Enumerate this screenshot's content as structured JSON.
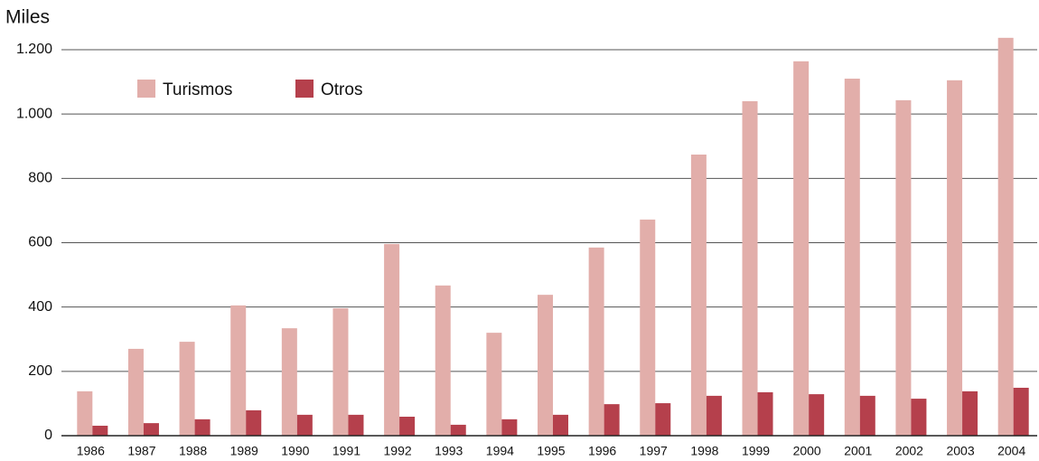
{
  "chart_data": {
    "type": "bar",
    "y_label": "Miles",
    "categories": [
      "1986",
      "1987",
      "1988",
      "1989",
      "1990",
      "1991",
      "1992",
      "1993",
      "1994",
      "1995",
      "1996",
      "1997",
      "1998",
      "1999",
      "2000",
      "2001",
      "2002",
      "2003",
      "2004"
    ],
    "series": [
      {
        "name": "Turismos",
        "color": "#e2aeaa",
        "values": [
          138,
          270,
          292,
          405,
          334,
          396,
          596,
          467,
          320,
          438,
          585,
          672,
          874,
          1040,
          1164,
          1110,
          1043,
          1105,
          1237
        ]
      },
      {
        "name": "Otros",
        "color": "#b5404c",
        "values": [
          31,
          39,
          51,
          79,
          65,
          65,
          59,
          34,
          51,
          65,
          98,
          101,
          124,
          135,
          129,
          124,
          115,
          138,
          149
        ]
      }
    ],
    "ylim": [
      0,
      1200
    ],
    "yticks": [
      0,
      200,
      400,
      600,
      800,
      {
        "value": 1000,
        "label": "1.000"
      },
      {
        "value": 1200,
        "label": "1.200"
      }
    ],
    "grid": true
  }
}
